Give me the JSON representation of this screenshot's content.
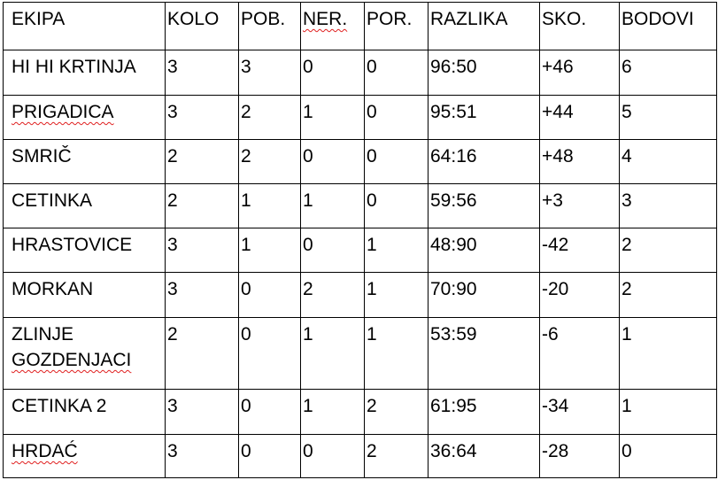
{
  "table": {
    "headers": [
      "EKIPA",
      "KOLO",
      "POB.",
      "NER.",
      "POR.",
      "RAZLIKA",
      "SKO.",
      "BODOVI"
    ],
    "rows": [
      [
        "HI HI KRTINJA",
        "3",
        "3",
        "0",
        "0",
        "96:50",
        "+46",
        "6"
      ],
      [
        "PRIGADICA",
        "3",
        "2",
        "1",
        "0",
        "95:51",
        "+44",
        "5"
      ],
      [
        "SMRIČ",
        "2",
        "2",
        "0",
        "0",
        "64:16",
        "+48",
        "4"
      ],
      [
        "CETINKA",
        "2",
        "1",
        "1",
        "0",
        "59:56",
        "+3",
        "3"
      ],
      [
        "HRASTOVICE",
        "3",
        "1",
        "0",
        "1",
        "48:90",
        "-42",
        "2"
      ],
      [
        "MORKAN",
        "3",
        "0",
        "2",
        "1",
        "70:90",
        "-20",
        "2"
      ],
      [
        "ZLINJE GOZDENJACI",
        "2",
        "0",
        "1",
        "1",
        "53:59",
        "-6",
        "1"
      ],
      [
        "CETINKA 2",
        "3",
        "0",
        "1",
        "2",
        "61:95",
        "-34",
        "1"
      ],
      [
        "HRDAĆ",
        "3",
        "0",
        "0",
        "2",
        "36:64",
        "-28",
        "0"
      ]
    ],
    "spellcheck_flagged": [
      "NER.",
      "PRIGADICA",
      "GOZDENJACI",
      "HRDAĆ"
    ],
    "spellcheck_color": "#e02020"
  }
}
